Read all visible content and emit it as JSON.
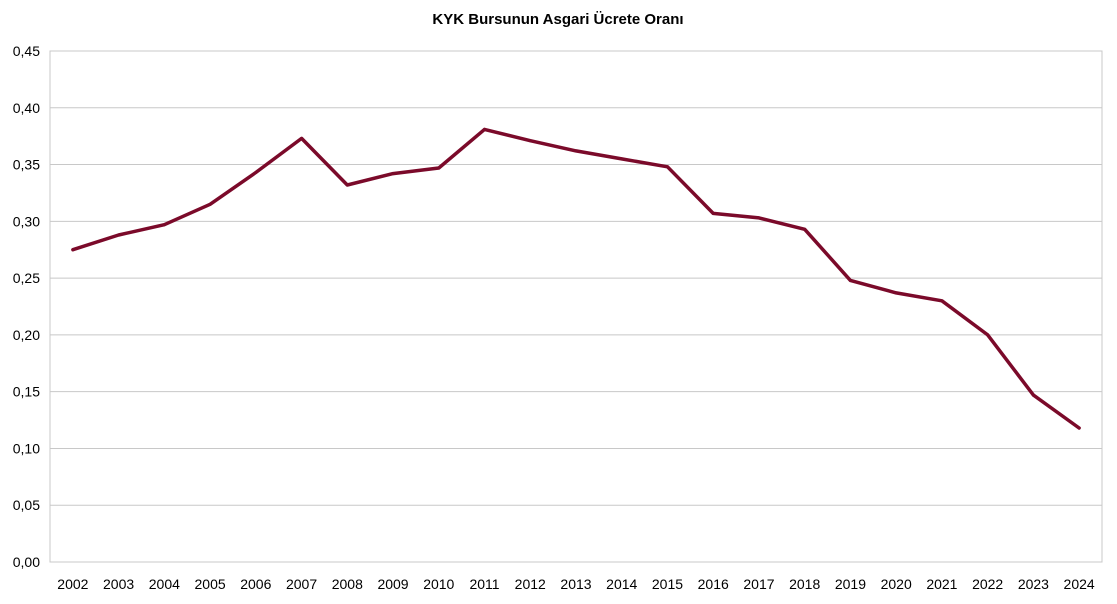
{
  "chart_data": {
    "type": "line",
    "title": "KYK Bursunun Asgari Ücrete Oranı",
    "xlabel": "",
    "ylabel": "",
    "categories": [
      "2002",
      "2003",
      "2004",
      "2005",
      "2006",
      "2007",
      "2008",
      "2009",
      "2010",
      "2011",
      "2012",
      "2013",
      "2014",
      "2015",
      "2016",
      "2017",
      "2018",
      "2019",
      "2020",
      "2021",
      "2022",
      "2023",
      "2024"
    ],
    "series": [
      {
        "values": [
          0.275,
          0.288,
          0.297,
          0.315,
          0.343,
          0.373,
          0.332,
          0.342,
          0.347,
          0.381,
          0.371,
          0.362,
          0.355,
          0.348,
          0.307,
          0.303,
          0.293,
          0.248,
          0.237,
          0.23,
          0.2,
          0.147,
          0.118
        ],
        "color": "#7b0a2a"
      }
    ],
    "ylim": [
      0,
      0.45
    ],
    "yticks": [
      "0,00",
      "0,05",
      "0,10",
      "0,15",
      "0,20",
      "0,25",
      "0,30",
      "0,35",
      "0,40",
      "0,45"
    ],
    "grid": true,
    "legend": "none",
    "colors": {
      "line": "#7b0a2a",
      "grid": "#c8c8c8",
      "frame": "#c8c8c8"
    }
  }
}
